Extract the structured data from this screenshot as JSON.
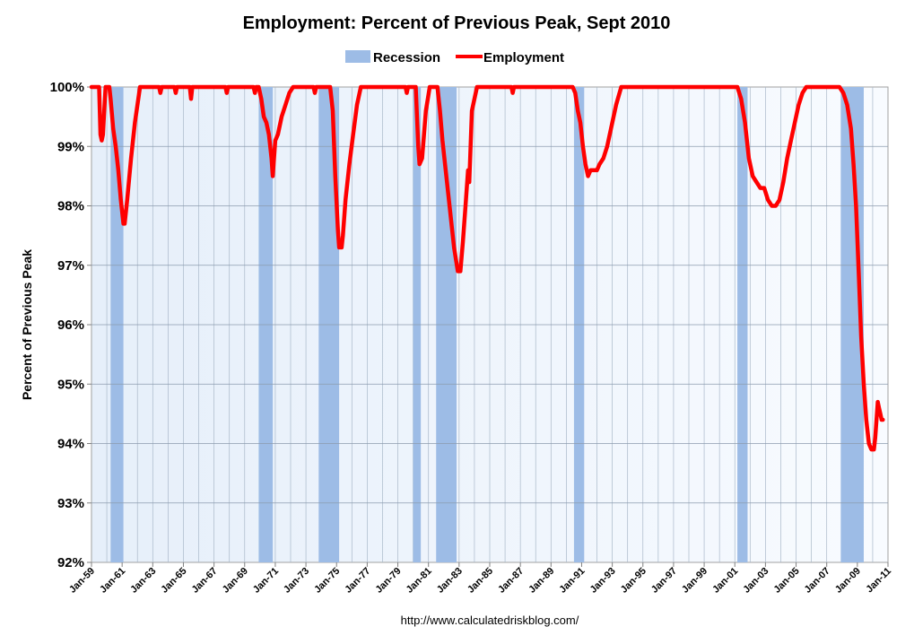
{
  "chart_data": {
    "type": "line",
    "title": "Employment: Percent of Previous Peak, Sept 2010",
    "xlabel": "",
    "ylabel": "Percent of Previous Peak",
    "source_text": "http://www.calculatedriskblog.com/",
    "ylim": [
      92,
      100
    ],
    "xlim": [
      "1959-01",
      "2011-01"
    ],
    "grid": true,
    "legend": {
      "position": "top-center",
      "entries": [
        {
          "name": "Recession",
          "type": "band",
          "color": "#9DBCE6"
        },
        {
          "name": "Employment",
          "type": "line",
          "color": "#FF0000"
        }
      ]
    },
    "y_ticks": [
      "92%",
      "93%",
      "94%",
      "95%",
      "96%",
      "97%",
      "98%",
      "99%",
      "100%"
    ],
    "y_tick_values": [
      92,
      93,
      94,
      95,
      96,
      97,
      98,
      99,
      100
    ],
    "x_ticks": [
      "Jan-59",
      "Jan-61",
      "Jan-63",
      "Jan-65",
      "Jan-67",
      "Jan-69",
      "Jan-71",
      "Jan-73",
      "Jan-75",
      "Jan-77",
      "Jan-79",
      "Jan-81",
      "Jan-83",
      "Jan-85",
      "Jan-87",
      "Jan-89",
      "Jan-91",
      "Jan-93",
      "Jan-95",
      "Jan-97",
      "Jan-99",
      "Jan-01",
      "Jan-03",
      "Jan-05",
      "Jan-07",
      "Jan-09",
      "Jan-11"
    ],
    "x_tick_values": [
      1959,
      1961,
      1963,
      1965,
      1967,
      1969,
      1971,
      1973,
      1975,
      1977,
      1979,
      1981,
      1983,
      1985,
      1987,
      1989,
      1991,
      1993,
      1995,
      1997,
      1999,
      2001,
      2003,
      2005,
      2007,
      2009,
      2011
    ],
    "recessions": [
      {
        "start": "1960-04",
        "end": "1961-02"
      },
      {
        "start": "1969-12",
        "end": "1970-11"
      },
      {
        "start": "1973-11",
        "end": "1975-03"
      },
      {
        "start": "1980-01",
        "end": "1980-07"
      },
      {
        "start": "1981-07",
        "end": "1982-11"
      },
      {
        "start": "1990-07",
        "end": "1991-03"
      },
      {
        "start": "2001-03",
        "end": "2001-11"
      },
      {
        "start": "2007-12",
        "end": "2009-06"
      }
    ],
    "series": [
      {
        "name": "Employment",
        "color": "#FF0000",
        "points": [
          [
            "1959-01",
            100
          ],
          [
            "1959-06",
            100
          ],
          [
            "1959-07",
            100
          ],
          [
            "1959-08",
            99.2
          ],
          [
            "1959-09",
            99.1
          ],
          [
            "1959-10",
            99.2
          ],
          [
            "1959-11",
            99.6
          ],
          [
            "1959-12",
            100
          ],
          [
            "1960-02",
            100
          ],
          [
            "1960-03",
            100
          ],
          [
            "1960-04",
            99.8
          ],
          [
            "1960-06",
            99.3
          ],
          [
            "1960-08",
            99.0
          ],
          [
            "1960-10",
            98.6
          ],
          [
            "1960-12",
            98.1
          ],
          [
            "1961-02",
            97.7
          ],
          [
            "1961-03",
            97.7
          ],
          [
            "1961-05",
            98.1
          ],
          [
            "1961-08",
            98.8
          ],
          [
            "1961-11",
            99.4
          ],
          [
            "1962-03",
            100
          ],
          [
            "1963-06",
            100
          ],
          [
            "1963-07",
            99.9
          ],
          [
            "1963-08",
            100
          ],
          [
            "1964-06",
            100
          ],
          [
            "1964-07",
            99.9
          ],
          [
            "1964-08",
            100
          ],
          [
            "1965-06",
            100
          ],
          [
            "1965-07",
            99.8
          ],
          [
            "1965-08",
            100
          ],
          [
            "1967-10",
            100
          ],
          [
            "1967-11",
            99.9
          ],
          [
            "1967-12",
            100
          ],
          [
            "1969-08",
            100
          ],
          [
            "1969-09",
            99.9
          ],
          [
            "1969-10",
            100
          ],
          [
            "1969-12",
            100
          ],
          [
            "1970-02",
            99.8
          ],
          [
            "1970-04",
            99.5
          ],
          [
            "1970-06",
            99.4
          ],
          [
            "1970-08",
            99.2
          ],
          [
            "1970-10",
            98.8
          ],
          [
            "1970-11",
            98.5
          ],
          [
            "1971-01",
            99.1
          ],
          [
            "1971-03",
            99.2
          ],
          [
            "1971-06",
            99.5
          ],
          [
            "1971-09",
            99.7
          ],
          [
            "1971-12",
            99.9
          ],
          [
            "1972-03",
            100
          ],
          [
            "1973-07",
            100
          ],
          [
            "1973-08",
            99.9
          ],
          [
            "1973-09",
            100
          ],
          [
            "1974-08",
            100
          ],
          [
            "1974-10",
            99.6
          ],
          [
            "1974-12",
            98.5
          ],
          [
            "1975-02",
            97.6
          ],
          [
            "1975-03",
            97.3
          ],
          [
            "1975-05",
            97.3
          ],
          [
            "1975-06",
            97.5
          ],
          [
            "1975-08",
            98.1
          ],
          [
            "1975-11",
            98.7
          ],
          [
            "1976-02",
            99.2
          ],
          [
            "1976-05",
            99.7
          ],
          [
            "1976-08",
            100
          ],
          [
            "1979-07",
            100
          ],
          [
            "1979-08",
            99.9
          ],
          [
            "1979-09",
            100
          ],
          [
            "1980-03",
            100
          ],
          [
            "1980-04",
            99.5
          ],
          [
            "1980-05",
            99.0
          ],
          [
            "1980-06",
            98.7
          ],
          [
            "1980-08",
            98.8
          ],
          [
            "1980-11",
            99.6
          ],
          [
            "1981-02",
            100
          ],
          [
            "1981-08",
            100
          ],
          [
            "1981-10",
            99.6
          ],
          [
            "1981-12",
            99.1
          ],
          [
            "1982-03",
            98.5
          ],
          [
            "1982-06",
            97.9
          ],
          [
            "1982-09",
            97.3
          ],
          [
            "1982-12",
            96.9
          ],
          [
            "1983-02",
            96.9
          ],
          [
            "1983-04",
            97.4
          ],
          [
            "1983-06",
            98.0
          ],
          [
            "1983-08",
            98.6
          ],
          [
            "1983-09",
            98.4
          ],
          [
            "1983-11",
            99.6
          ],
          [
            "1984-03",
            100
          ],
          [
            "1986-06",
            100
          ],
          [
            "1986-07",
            99.9
          ],
          [
            "1986-08",
            100
          ],
          [
            "1990-06",
            100
          ],
          [
            "1990-08",
            99.9
          ],
          [
            "1990-10",
            99.6
          ],
          [
            "1990-12",
            99.4
          ],
          [
            "1991-02",
            99.0
          ],
          [
            "1991-04",
            98.7
          ],
          [
            "1991-06",
            98.5
          ],
          [
            "1991-08",
            98.6
          ],
          [
            "1991-10",
            98.6
          ],
          [
            "1992-01",
            98.6
          ],
          [
            "1992-03",
            98.7
          ],
          [
            "1992-06",
            98.8
          ],
          [
            "1992-09",
            99.0
          ],
          [
            "1992-12",
            99.3
          ],
          [
            "1993-04",
            99.7
          ],
          [
            "1993-08",
            100
          ],
          [
            "2001-03",
            100
          ],
          [
            "2001-06",
            99.8
          ],
          [
            "2001-09",
            99.4
          ],
          [
            "2001-12",
            98.8
          ],
          [
            "2002-03",
            98.5
          ],
          [
            "2002-06",
            98.4
          ],
          [
            "2002-09",
            98.3
          ],
          [
            "2002-12",
            98.3
          ],
          [
            "2003-03",
            98.1
          ],
          [
            "2003-06",
            98.0
          ],
          [
            "2003-09",
            98.0
          ],
          [
            "2003-12",
            98.1
          ],
          [
            "2004-03",
            98.4
          ],
          [
            "2004-06",
            98.8
          ],
          [
            "2004-09",
            99.1
          ],
          [
            "2004-12",
            99.4
          ],
          [
            "2005-03",
            99.7
          ],
          [
            "2005-06",
            99.9
          ],
          [
            "2005-09",
            100
          ],
          [
            "2007-11",
            100
          ],
          [
            "2008-02",
            99.9
          ],
          [
            "2008-05",
            99.7
          ],
          [
            "2008-08",
            99.3
          ],
          [
            "2008-10",
            98.7
          ],
          [
            "2008-12",
            98.0
          ],
          [
            "2009-02",
            96.9
          ],
          [
            "2009-04",
            95.8
          ],
          [
            "2009-06",
            95.0
          ],
          [
            "2009-08",
            94.4
          ],
          [
            "2009-10",
            94.0
          ],
          [
            "2009-12",
            93.9
          ],
          [
            "2010-02",
            93.9
          ],
          [
            "2010-03",
            94.1
          ],
          [
            "2010-04",
            94.4
          ],
          [
            "2010-05",
            94.7
          ],
          [
            "2010-06",
            94.6
          ],
          [
            "2010-07",
            94.5
          ],
          [
            "2010-08",
            94.4
          ],
          [
            "2010-09",
            94.4
          ]
        ]
      }
    ]
  }
}
